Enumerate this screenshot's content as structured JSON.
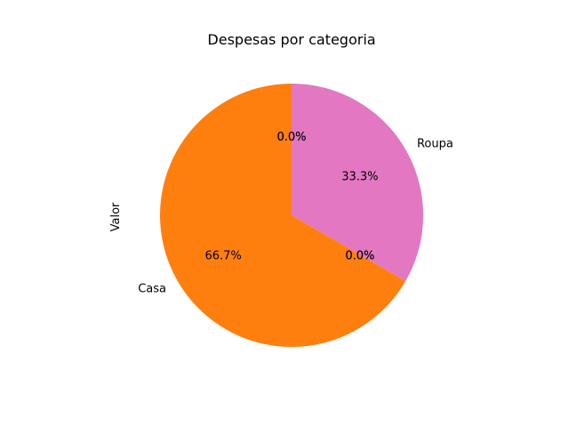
{
  "chart_data": {
    "type": "pie",
    "title": "Despesas por categoria",
    "ylabel": "Valor",
    "start_angle_deg": 90,
    "direction": "clockwise",
    "slices": [
      {
        "label": "",
        "value": 0,
        "percent_label": "0.0%",
        "color": "#1f77b4"
      },
      {
        "label": "",
        "value": 0,
        "percent_label": "0.0%",
        "color": "#2ca02c"
      },
      {
        "label": "Roupa",
        "value": 1,
        "percent_label": "33.3%",
        "color": "#e377c2"
      },
      {
        "label": "",
        "value": 0,
        "percent_label": "0.0%",
        "color": "#d62728"
      },
      {
        "label": "",
        "value": 0,
        "percent_label": "0.0%",
        "color": "#9467bd"
      },
      {
        "label": "Casa",
        "value": 2,
        "percent_label": "66.7%",
        "color": "#ff7f0e"
      }
    ]
  }
}
